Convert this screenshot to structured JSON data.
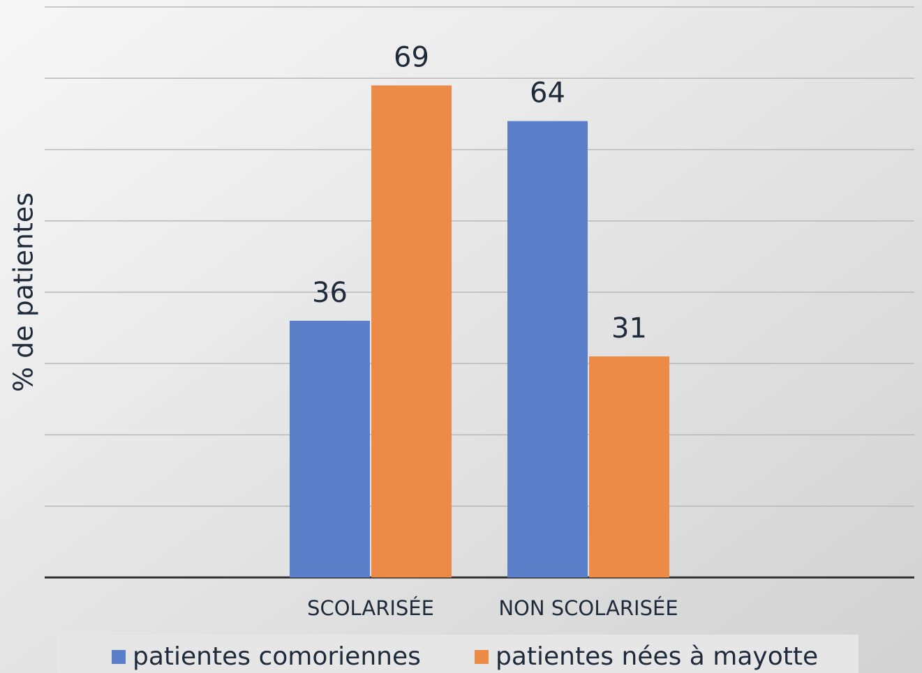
{
  "chart_data": {
    "type": "bar",
    "y_label": "% de patientes",
    "categories": [
      "SCOLARISÉE",
      "NON SCOLARISÉE"
    ],
    "series": [
      {
        "name": "patientes comoriennes",
        "color": "#5b80c9",
        "values": [
          36,
          64
        ]
      },
      {
        "name": "patientes nées à mayotte",
        "color": "#ec8b47",
        "values": [
          69,
          31
        ]
      }
    ],
    "ylim": [
      0,
      80
    ],
    "yticks": [
      0,
      10,
      20,
      30,
      40,
      50,
      60,
      70,
      80
    ],
    "grid": true,
    "legend": "bottom"
  }
}
